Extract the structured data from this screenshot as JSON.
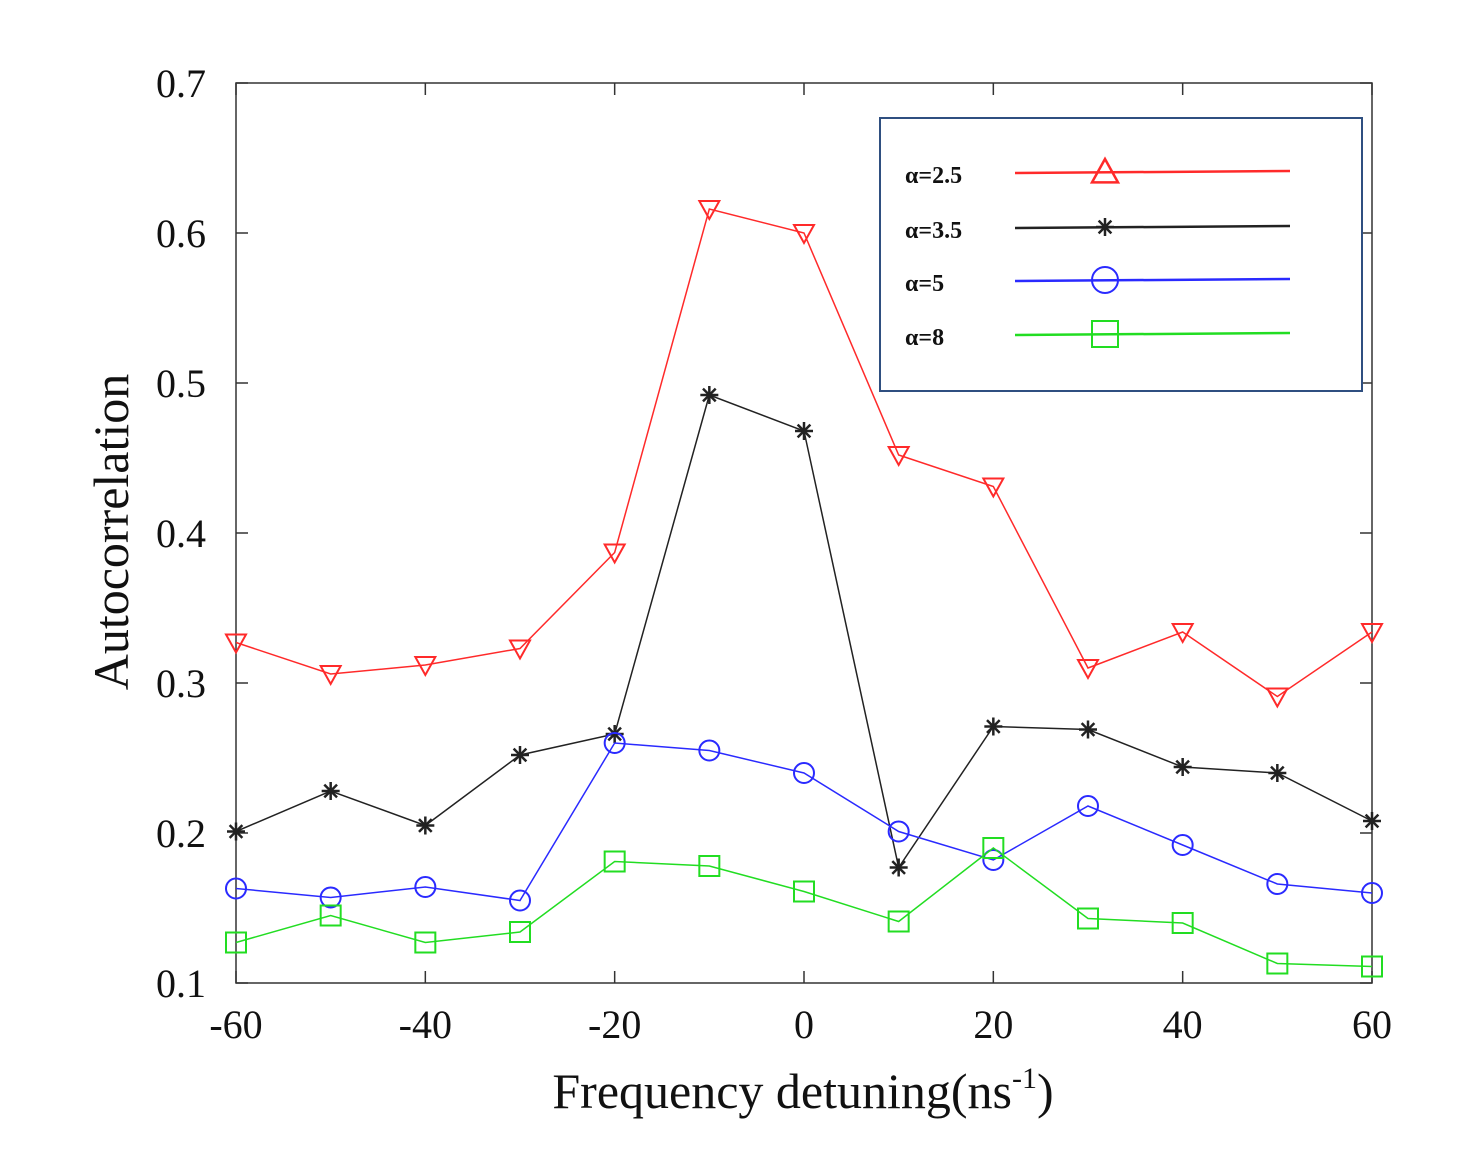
{
  "chart_data": {
    "type": "line",
    "xlabel": "Frequency detuning(ns",
    "xlabel_sup": "-1",
    "xlabel_end": ")",
    "ylabel": "Autocorrelation",
    "xlim": [
      -60,
      60
    ],
    "ylim": [
      0.1,
      0.7
    ],
    "xticks": [
      -60,
      -40,
      -20,
      0,
      20,
      40,
      60
    ],
    "xtick_labels": [
      "-60",
      "-40",
      "-20",
      "0",
      "20",
      "40",
      "60"
    ],
    "yticks": [
      0.1,
      0.2,
      0.3,
      0.4,
      0.5,
      0.6,
      0.7
    ],
    "ytick_labels": [
      "0.1",
      "0.2",
      "0.3",
      "0.4",
      "0.5",
      "0.6",
      "0.7"
    ],
    "grid": false,
    "legend_position": "top-right",
    "x": [
      -60,
      -50,
      -40,
      -30,
      -20,
      -10,
      0,
      10,
      20,
      30,
      40,
      50,
      60
    ],
    "series": [
      {
        "name": "α=2.5",
        "color": "#ff2a2a",
        "marker": "triangle-down",
        "legend_marker": "triangle-up",
        "values": [
          0.327,
          0.306,
          0.312,
          0.323,
          0.387,
          0.616,
          0.6,
          0.452,
          0.431,
          0.31,
          0.334,
          0.291,
          0.334
        ]
      },
      {
        "name": "α=3.5",
        "color": "#222222",
        "marker": "star",
        "values": [
          0.201,
          0.228,
          0.205,
          0.252,
          0.266,
          0.492,
          0.468,
          0.177,
          0.271,
          0.269,
          0.244,
          0.24,
          0.208
        ]
      },
      {
        "name": "α=5",
        "color": "#2a2aff",
        "marker": "circle",
        "values": [
          0.163,
          0.157,
          0.164,
          0.155,
          0.26,
          0.255,
          0.24,
          0.201,
          0.182,
          0.218,
          0.192,
          0.166,
          0.16
        ]
      },
      {
        "name": "α=8",
        "color": "#22dd22",
        "marker": "square",
        "values": [
          0.127,
          0.145,
          0.127,
          0.134,
          0.181,
          0.178,
          0.161,
          0.141,
          0.19,
          0.143,
          0.14,
          0.113,
          0.111
        ]
      }
    ]
  }
}
